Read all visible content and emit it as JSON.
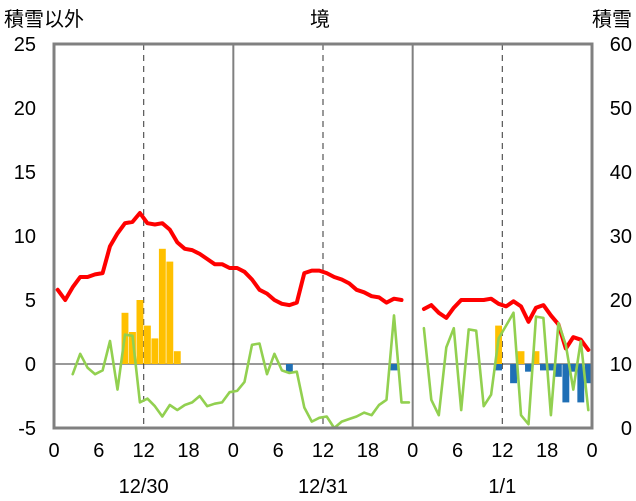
{
  "header": {
    "left_label": "積雪以外",
    "center_label": "境",
    "right_label": "積雪"
  },
  "colors": {
    "temperature": "#ff0000",
    "humidity_or_other": "#92d050",
    "precipitation": "#ffc000",
    "snow_change": "#1f6fb5",
    "baseline": "#7030a0",
    "frame": "#808080"
  },
  "chart_data": {
    "type": "line",
    "x_unit_hours": true,
    "xlim": [
      0,
      72
    ],
    "x_ticks": [
      {
        "h": 0,
        "label": "0"
      },
      {
        "h": 6,
        "label": "6"
      },
      {
        "h": 12,
        "label": "12"
      },
      {
        "h": 18,
        "label": "18"
      },
      {
        "h": 24,
        "label": "0"
      },
      {
        "h": 30,
        "label": "6"
      },
      {
        "h": 36,
        "label": "12"
      },
      {
        "h": 42,
        "label": "18"
      },
      {
        "h": 48,
        "label": "0"
      },
      {
        "h": 54,
        "label": "6"
      },
      {
        "h": 60,
        "label": "12"
      },
      {
        "h": 66,
        "label": "18"
      },
      {
        "h": 72,
        "label": "0"
      }
    ],
    "date_labels": [
      {
        "h": 12,
        "label": "12/30"
      },
      {
        "h": 36,
        "label": "12/31"
      },
      {
        "h": 60,
        "label": "1/1"
      }
    ],
    "ylim_left": [
      -5,
      25
    ],
    "y_ticks_left": [
      "-5",
      "0",
      "5",
      "10",
      "15",
      "20",
      "25"
    ],
    "ylim_right": [
      0,
      60
    ],
    "y_ticks_right": [
      "0",
      "10",
      "20",
      "30",
      "40",
      "50",
      "60"
    ],
    "series": [
      {
        "key": "temperature",
        "axis": "left",
        "color": "#ff0000",
        "segments": [
          [
            [
              0,
              5.8
            ],
            [
              1,
              5.0
            ],
            [
              2,
              6.0
            ],
            [
              3,
              6.8
            ],
            [
              4,
              6.8
            ],
            [
              5,
              7.0
            ],
            [
              6,
              7.1
            ],
            [
              7,
              9.2
            ],
            [
              8,
              10.2
            ],
            [
              9,
              11.0
            ],
            [
              10,
              11.1
            ],
            [
              11,
              11.8
            ],
            [
              12,
              11.0
            ],
            [
              13,
              10.9
            ],
            [
              14,
              11.0
            ],
            [
              15,
              10.5
            ],
            [
              16,
              9.5
            ],
            [
              17,
              9.0
            ],
            [
              18,
              8.9
            ],
            [
              19,
              8.6
            ],
            [
              20,
              8.2
            ],
            [
              21,
              7.8
            ],
            [
              22,
              7.8
            ],
            [
              23,
              7.5
            ],
            [
              24,
              7.5
            ],
            [
              25,
              7.2
            ],
            [
              26,
              6.6
            ],
            [
              27,
              5.8
            ],
            [
              28,
              5.5
            ],
            [
              29,
              5.0
            ],
            [
              30,
              4.7
            ],
            [
              31,
              4.6
            ],
            [
              32,
              4.8
            ],
            [
              33,
              7.1
            ],
            [
              34,
              7.3
            ],
            [
              35,
              7.3
            ],
            [
              36,
              7.1
            ],
            [
              37,
              6.8
            ],
            [
              38,
              6.6
            ],
            [
              39,
              6.3
            ],
            [
              40,
              5.8
            ],
            [
              41,
              5.6
            ],
            [
              42,
              5.3
            ],
            [
              43,
              5.2
            ],
            [
              44,
              4.8
            ],
            [
              45,
              5.1
            ],
            [
              46,
              5.0
            ]
          ],
          [
            [
              49,
              4.3
            ],
            [
              50,
              4.6
            ],
            [
              51,
              4.0
            ],
            [
              52,
              3.6
            ],
            [
              53,
              4.4
            ],
            [
              54,
              5.0
            ],
            [
              55,
              5.0
            ],
            [
              56,
              5.0
            ],
            [
              57,
              5.0
            ],
            [
              58,
              5.1
            ],
            [
              59,
              4.7
            ],
            [
              60,
              4.5
            ],
            [
              61,
              4.9
            ],
            [
              62,
              4.5
            ],
            [
              63,
              3.3
            ],
            [
              64,
              4.4
            ],
            [
              65,
              4.6
            ],
            [
              66,
              3.8
            ],
            [
              67,
              3.1
            ],
            [
              68,
              1.2
            ],
            [
              69,
              2.1
            ],
            [
              70,
              1.9
            ],
            [
              71,
              1.1
            ]
          ]
        ]
      },
      {
        "key": "humidity_or_other",
        "axis": "left",
        "color": "#92d050",
        "segments": [
          [
            [
              2,
              -0.8
            ],
            [
              3,
              0.8
            ],
            [
              4,
              -0.3
            ],
            [
              5,
              -0.8
            ],
            [
              6,
              -0.5
            ],
            [
              7,
              1.8
            ],
            [
              8,
              -2.0
            ],
            [
              9,
              2.3
            ],
            [
              10,
              2.2
            ],
            [
              11,
              -3.0
            ],
            [
              12,
              -2.7
            ],
            [
              13,
              -3.3
            ],
            [
              14,
              -4.1
            ],
            [
              15,
              -3.2
            ],
            [
              16,
              -3.6
            ],
            [
              17,
              -3.2
            ],
            [
              18,
              -3.0
            ],
            [
              19,
              -2.5
            ],
            [
              20,
              -3.3
            ],
            [
              21,
              -3.1
            ],
            [
              22,
              -3.0
            ],
            [
              23,
              -2.2
            ],
            [
              24,
              -2.1
            ],
            [
              25,
              -1.4
            ],
            [
              26,
              1.5
            ],
            [
              27,
              1.6
            ],
            [
              28,
              -0.8
            ],
            [
              29,
              0.8
            ],
            [
              30,
              -0.5
            ],
            [
              31,
              -0.7
            ],
            [
              32,
              -0.6
            ],
            [
              33,
              -3.4
            ],
            [
              34,
              -4.5
            ],
            [
              35,
              -4.2
            ],
            [
              36,
              -4.1
            ],
            [
              37,
              -5.0
            ],
            [
              38,
              -4.5
            ],
            [
              39,
              -4.3
            ],
            [
              40,
              -4.1
            ],
            [
              41,
              -3.8
            ],
            [
              42,
              -4.0
            ],
            [
              43,
              -3.2
            ],
            [
              44,
              -2.8
            ],
            [
              45,
              3.8
            ],
            [
              46,
              -3.0
            ],
            [
              47,
              -3.0
            ]
          ],
          [
            [
              49,
              2.8
            ],
            [
              50,
              -2.8
            ],
            [
              51,
              -4.0
            ],
            [
              52,
              1.3
            ],
            [
              53,
              2.8
            ],
            [
              54,
              -3.6
            ],
            [
              55,
              2.7
            ],
            [
              56,
              2.6
            ],
            [
              57,
              -3.3
            ],
            [
              58,
              -2.4
            ],
            [
              59,
              2.0
            ],
            [
              60,
              3.0
            ],
            [
              61,
              4.0
            ],
            [
              62,
              -4.0
            ],
            [
              63,
              -4.7
            ],
            [
              64,
              3.7
            ],
            [
              65,
              3.6
            ],
            [
              66,
              -4.0
            ],
            [
              67,
              3.2
            ],
            [
              68,
              1.5
            ],
            [
              69,
              -2.0
            ],
            [
              70,
              1.8
            ],
            [
              71,
              -3.6
            ]
          ]
        ]
      }
    ],
    "bars": [
      {
        "key": "precipitation",
        "axis": "left",
        "color": "#ffc000",
        "items": [
          [
            9,
            4.0
          ],
          [
            10,
            2.5
          ],
          [
            11,
            5.0
          ],
          [
            12,
            3.0
          ],
          [
            13,
            2.0
          ],
          [
            14,
            9.0
          ],
          [
            15,
            8.0
          ],
          [
            16,
            1.0
          ],
          [
            59,
            3.0
          ],
          [
            62,
            1.0
          ],
          [
            64,
            1.0
          ]
        ]
      },
      {
        "key": "snow_change",
        "axis": "left",
        "color": "#1f6fb5",
        "items": [
          [
            31,
            -0.6
          ],
          [
            45,
            -0.5
          ],
          [
            59,
            -0.5
          ],
          [
            61,
            -1.5
          ],
          [
            63,
            -0.6
          ],
          [
            65,
            -0.5
          ],
          [
            66,
            -0.5
          ],
          [
            67,
            -1.0
          ],
          [
            68,
            -3.0
          ],
          [
            69,
            -0.6
          ],
          [
            70,
            -3.0
          ],
          [
            71,
            -1.5
          ]
        ]
      }
    ],
    "baseline": {
      "axis": "left",
      "value": -5,
      "color": "#7030a0"
    },
    "day_separators_h": [
      24,
      48
    ],
    "gridlines_dashed_h": [
      12,
      36,
      60
    ],
    "zero_line": true
  }
}
